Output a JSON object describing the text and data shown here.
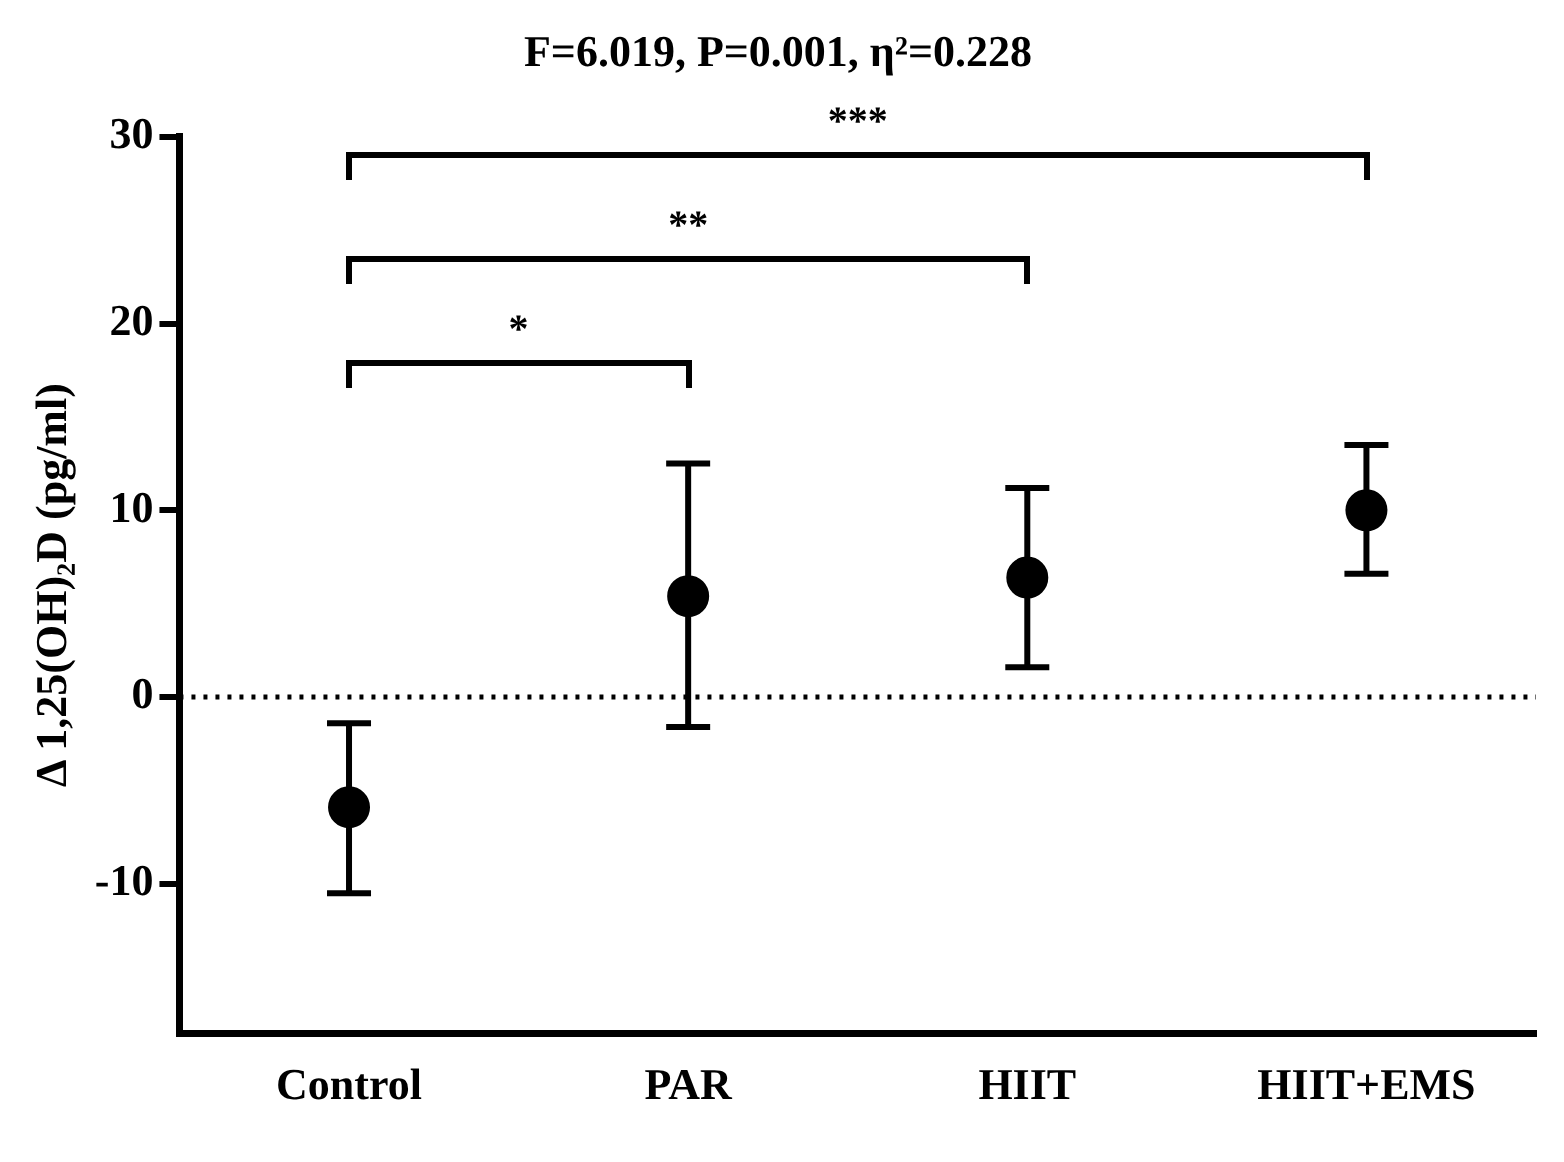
{
  "chart_data": {
    "type": "scatter",
    "title": "F=6.019, P=0.001, η²=0.228",
    "ylabel": "Δ 1,25(OH)₂D (pg/ml)",
    "categories": [
      "Control",
      "PAR",
      "HIIT",
      "HIIT+EMS"
    ],
    "values": [
      -5.9,
      5.4,
      6.4,
      10.0
    ],
    "errors": [
      [
        -10.5,
        -1.4
      ],
      [
        -1.6,
        12.5
      ],
      [
        1.6,
        11.2
      ],
      [
        6.6,
        13.5
      ]
    ],
    "color": "#000000",
    "marker": "circle",
    "ylim": [
      -18,
      30
    ],
    "yticks": [
      -10,
      0,
      10,
      20,
      30
    ],
    "grid": false,
    "legend": false,
    "ref_lines": [
      {
        "axis": "y",
        "value": 0,
        "line_style": "dotted"
      }
    ],
    "annotations": [
      "*",
      "**",
      "***"
    ]
  }
}
